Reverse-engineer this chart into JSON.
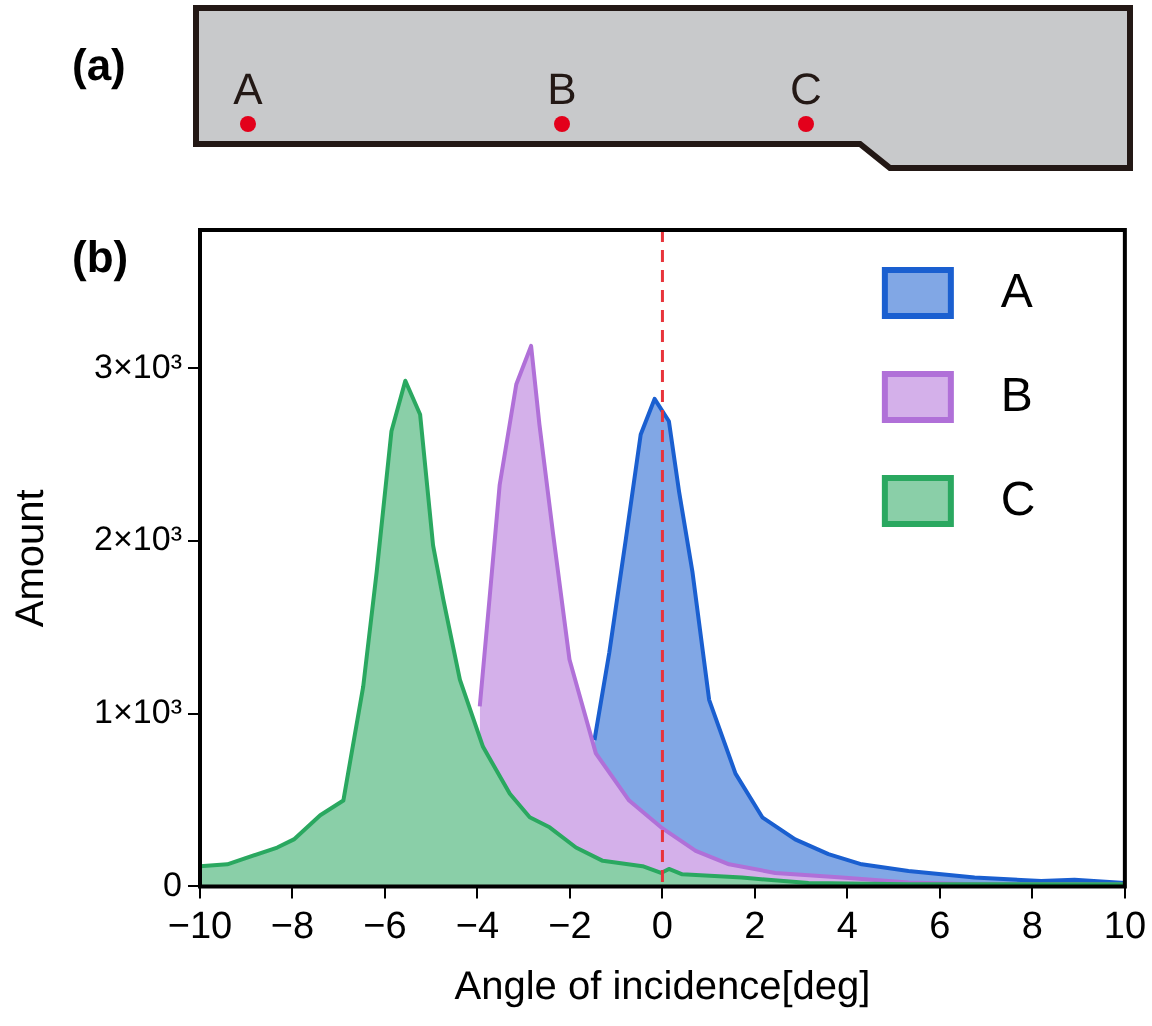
{
  "chart_data": {
    "type": "area",
    "xlabel": "Angle of incidence[deg]",
    "ylabel": "Amount",
    "annotations": [
      "(a)",
      "(b)"
    ],
    "xlim": [
      -10,
      10
    ],
    "xticks": [
      {
        "value": -10,
        "label": "−10"
      },
      {
        "value": -8,
        "label": "−8"
      },
      {
        "value": -6,
        "label": "−6"
      },
      {
        "value": -4,
        "label": "−4"
      },
      {
        "value": -2,
        "label": "−2"
      },
      0,
      2,
      4,
      6,
      8,
      10
    ],
    "ylim": [
      0,
      3800
    ],
    "yticks": [
      0,
      {
        "value": 1000,
        "label": "1×10³"
      },
      {
        "value": 2000,
        "label": "2×10³"
      },
      {
        "value": 3000,
        "label": "3×10³"
      }
    ],
    "grid": false,
    "legend": "top right",
    "ref_lines": [
      {
        "axis": "x",
        "value": 0,
        "color": "#e8333a",
        "line_style": "dashed"
      }
    ],
    "series": [
      {
        "name": "A",
        "color": "#1a5fd0",
        "x": [
          -1.47,
          -1.15,
          -0.79,
          -0.47,
          -0.17,
          0.14,
          0.36,
          0.65,
          1.01,
          1.58,
          2.16,
          2.87,
          3.59,
          4.31,
          5.32,
          6.75,
          8.19,
          8.91,
          10
        ],
        "values": [
          847,
          1352,
          2013,
          2616,
          2822,
          2693,
          2285,
          1819,
          1080,
          653,
          400,
          272,
          187,
          128,
          89,
          51,
          31,
          39,
          19
        ]
      },
      {
        "name": "B",
        "color": "#b070d8",
        "x": [
          -3.95,
          -3.74,
          -3.52,
          -3.16,
          -2.84,
          -2.66,
          -2.37,
          -2.01,
          -1.44,
          -0.72,
          -0.03,
          0.72,
          1.44,
          2.44,
          3.88,
          5.32,
          6.75,
          10
        ],
        "values": [
          1042,
          1663,
          2324,
          2907,
          3129,
          2674,
          2052,
          1314,
          770,
          497,
          342,
          206,
          128,
          78,
          51,
          23,
          12,
          12
        ]
      },
      {
        "name": "C",
        "color": "#2aa860",
        "x": [
          -10,
          -9.41,
          -8.33,
          -7.97,
          -7.4,
          -6.9,
          -6.47,
          -6.18,
          -5.86,
          -5.56,
          -5.24,
          -4.96,
          -4.74,
          -4.38,
          -3.88,
          -3.3,
          -2.87,
          -2.44,
          -1.87,
          -1.29,
          -0.43,
          -0.03,
          0.14,
          0.43,
          1.72,
          3.16,
          5.32,
          10
        ],
        "values": [
          117,
          128,
          225,
          272,
          412,
          497,
          1158,
          1819,
          2635,
          2927,
          2732,
          1974,
          1663,
          1197,
          808,
          536,
          400,
          342,
          225,
          148,
          117,
          78,
          101,
          70,
          51,
          19,
          12,
          12
        ]
      }
    ]
  }
}
